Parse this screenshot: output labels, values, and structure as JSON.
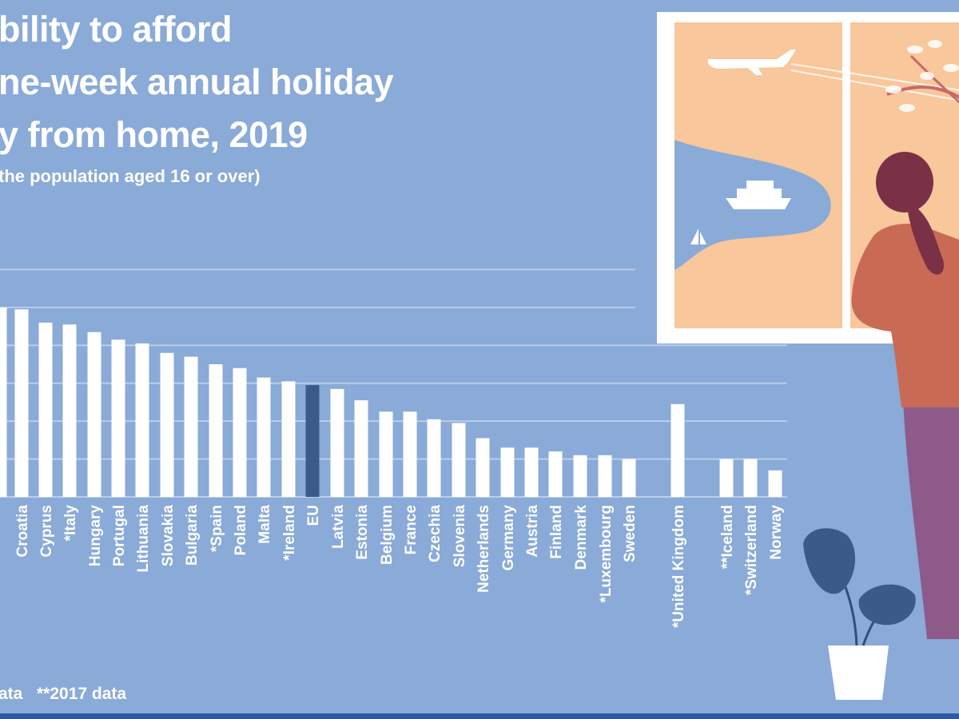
{
  "title": {
    "line1": "bility to afford",
    "line2": "ne-week annual holiday",
    "line3": "y from home, 2019"
  },
  "subtitle": "the population aged 16 or over)",
  "footnotes": {
    "note1": "ata",
    "note2": "**2017 data"
  },
  "colors": {
    "background": "#8aaad8",
    "bar": "#ffffff",
    "eu_bar": "#3b5a8a",
    "grid": "#b9cdea"
  },
  "chart_data": {
    "type": "bar",
    "title": "bility to afford ne-week annual holiday y from home, 2019",
    "ylabel": "",
    "xlabel": "",
    "ylim": [
      0,
      70
    ],
    "gridlines": [
      10,
      20,
      30,
      40,
      50,
      60
    ],
    "grid": true,
    "categories": [
      "",
      "Croatia",
      "Cyprus",
      "*Italy",
      "Hungary",
      "Portugal",
      "Lithuania",
      "Slovakia",
      "Bulgaria",
      "*Spain",
      "Poland",
      "Malta",
      "*Ireland",
      "EU",
      "Latvia",
      "Estonia",
      "Belgium",
      "France",
      "Czechia",
      "Slovenia",
      "Netherlands",
      "Germany",
      "Austria",
      "Finland",
      "Denmark",
      "*Luxembourg",
      "Sweden",
      "*United Kingdom",
      "**Iceland",
      "*Switzerland",
      "Norway"
    ],
    "values": [
      50,
      49.5,
      46,
      45.5,
      43.5,
      41.5,
      40.5,
      38,
      37,
      35,
      34,
      31.5,
      30.5,
      29.5,
      28.5,
      25.5,
      22.5,
      22.5,
      20.5,
      19.5,
      15.5,
      13,
      13,
      12,
      11,
      11,
      10,
      24.5,
      10,
      10,
      7
    ],
    "highlight": "EU"
  }
}
